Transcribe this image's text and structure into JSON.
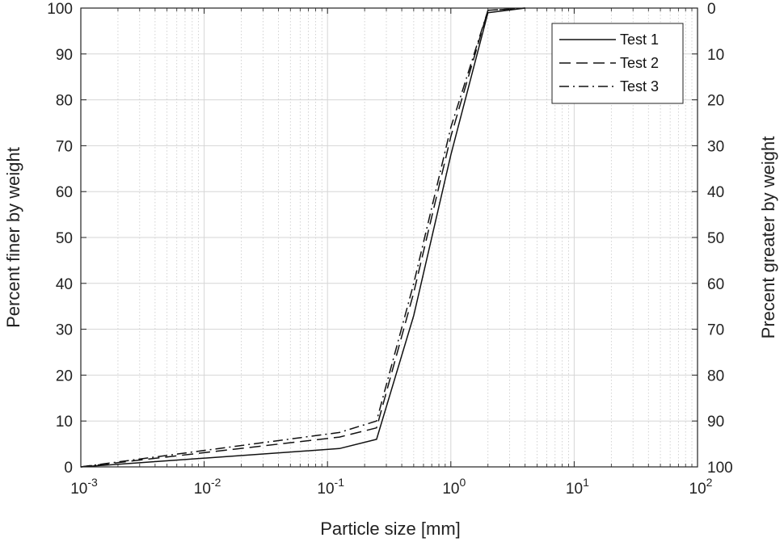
{
  "chart_data": {
    "type": "line",
    "xscale": "log",
    "xlim": [
      0.001,
      100
    ],
    "ylim": [
      0,
      100
    ],
    "y2lim": [
      100,
      0
    ],
    "grid": true,
    "minor_grid": true,
    "xlabel": "Particle size [mm]",
    "ylabel": "Percent finer by weight",
    "y2label": "Precent greater by weight",
    "x_ticks": [
      {
        "base": "10",
        "exp": "-3",
        "value": 0.001
      },
      {
        "base": "10",
        "exp": "-2",
        "value": 0.01
      },
      {
        "base": "10",
        "exp": "-1",
        "value": 0.1
      },
      {
        "base": "10",
        "exp": "0",
        "value": 1
      },
      {
        "base": "10",
        "exp": "1",
        "value": 10
      },
      {
        "base": "10",
        "exp": "2",
        "value": 100
      }
    ],
    "y_ticks": [
      "0",
      "10",
      "20",
      "30",
      "40",
      "50",
      "60",
      "70",
      "80",
      "90",
      "100"
    ],
    "y2_ticks": [
      "100",
      "90",
      "80",
      "70",
      "60",
      "50",
      "40",
      "30",
      "20",
      "10",
      "0"
    ],
    "legend_position": "top-right",
    "series": [
      {
        "name": "Test 1",
        "style": "solid",
        "x": [
          0.001,
          0.125,
          0.25,
          0.5,
          1,
          2,
          4
        ],
        "y": [
          0,
          4,
          6,
          33,
          68,
          99,
          100
        ]
      },
      {
        "name": "Test 2",
        "style": "dashed",
        "x": [
          0.001,
          0.125,
          0.25,
          0.5,
          1,
          2,
          4
        ],
        "y": [
          0,
          6.5,
          8.5,
          38,
          72,
          99.5,
          100
        ]
      },
      {
        "name": "Test 3",
        "style": "dashdot",
        "x": [
          0.001,
          0.125,
          0.25,
          0.5,
          1,
          2,
          4
        ],
        "y": [
          0,
          7.5,
          10,
          40,
          74,
          99.5,
          100
        ]
      }
    ]
  }
}
